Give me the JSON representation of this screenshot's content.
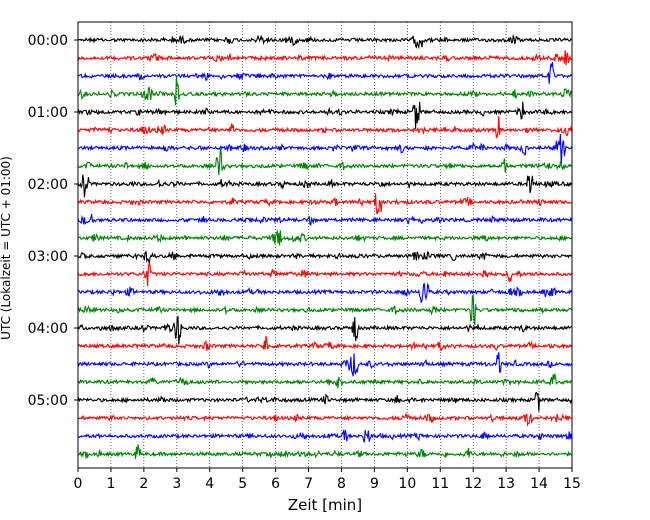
{
  "chart_data": {
    "type": "line",
    "title": "",
    "xlabel": "Zeit  [min]",
    "ylabel": "UTC (Lokalzeit = UTC + 01:00)",
    "xlim": [
      0,
      15
    ],
    "x_ticks": [
      "0",
      "1",
      "2",
      "3",
      "4",
      "5",
      "6",
      "7",
      "8",
      "9",
      "10",
      "11",
      "12",
      "13",
      "14",
      "15"
    ],
    "y_ticks": [
      "00:00",
      "01:00",
      "02:00",
      "03:00",
      "04:00",
      "05:00"
    ],
    "grid": true,
    "trace_interval_min": 15,
    "trace_count": 24,
    "color_cycle": [
      "#000000",
      "#ff0000",
      "#0000ff",
      "#008000"
    ]
  }
}
